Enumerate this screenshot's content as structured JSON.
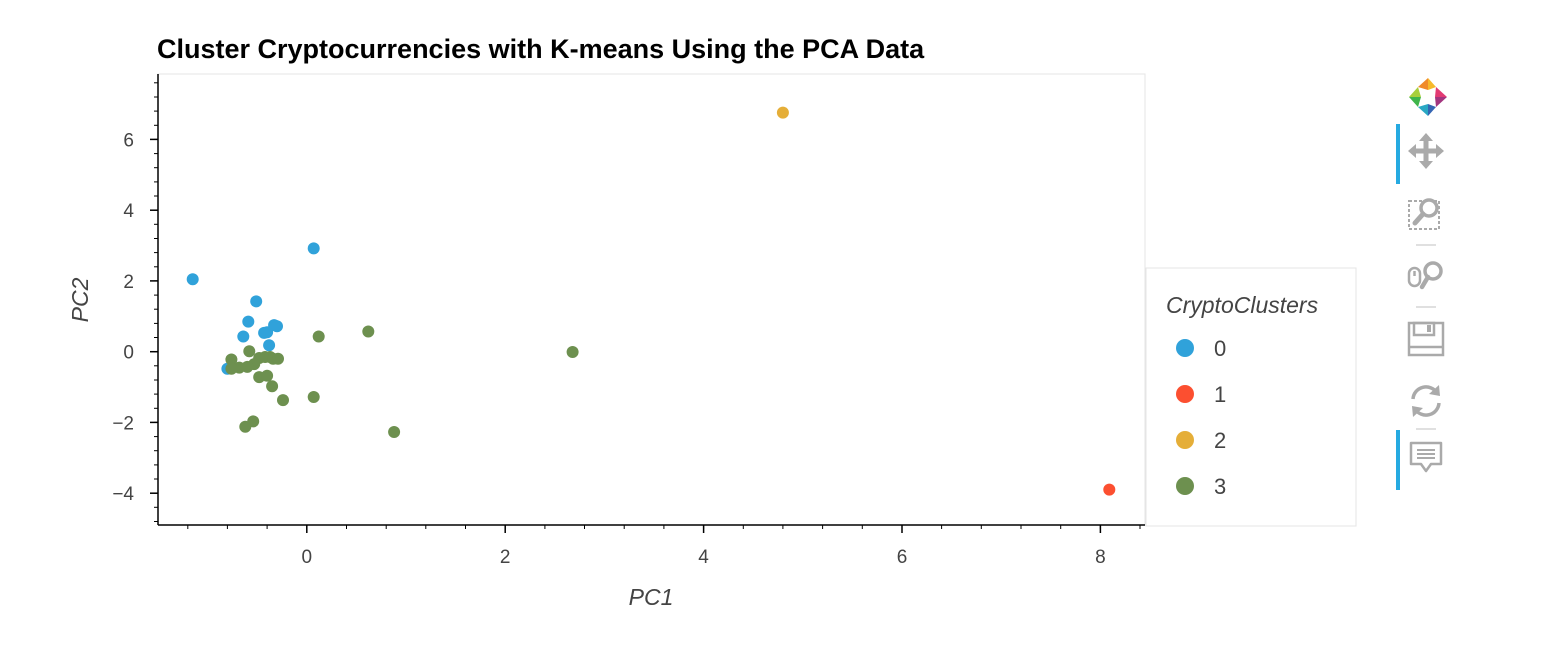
{
  "chart_data": {
    "type": "scatter",
    "title": "Cluster Cryptocurrencies with K-means Using the PCA Data",
    "xlabel": "PC1",
    "ylabel": "PC2",
    "xlim": [
      -1.5,
      8.45
    ],
    "ylim": [
      -4.9,
      7.85
    ],
    "x_ticks": [
      0,
      2,
      4,
      6,
      8
    ],
    "y_ticks": [
      -4,
      -2,
      0,
      2,
      4,
      6
    ],
    "x_tick_labels": [
      "0",
      "2",
      "4",
      "6",
      "8"
    ],
    "y_tick_labels": [
      "−4",
      "−2",
      "0",
      "2",
      "4",
      "6"
    ],
    "legend": {
      "title": "CryptoClusters",
      "placement": "right"
    },
    "series": [
      {
        "name": "0",
        "color": "#30a2da",
        "points": [
          [
            -1.15,
            2.05
          ],
          [
            0.07,
            2.92
          ],
          [
            -0.51,
            1.42
          ],
          [
            -0.59,
            0.85
          ],
          [
            -0.33,
            0.75
          ],
          [
            -0.3,
            0.72
          ],
          [
            -0.43,
            0.53
          ],
          [
            -0.4,
            0.55
          ],
          [
            -0.64,
            0.43
          ],
          [
            -0.38,
            0.18
          ],
          [
            -0.8,
            -0.48
          ]
        ]
      },
      {
        "name": "1",
        "color": "#fc4f30",
        "points": [
          [
            8.09,
            -3.9
          ]
        ]
      },
      {
        "name": "2",
        "color": "#e5ae38",
        "points": [
          [
            4.8,
            6.76
          ]
        ]
      },
      {
        "name": "3",
        "color": "#6d904f",
        "points": [
          [
            0.12,
            0.43
          ],
          [
            0.62,
            0.57
          ],
          [
            2.68,
            -0.01
          ],
          [
            -0.76,
            -0.22
          ],
          [
            -0.58,
            0.01
          ],
          [
            -0.48,
            -0.18
          ],
          [
            -0.42,
            -0.15
          ],
          [
            -0.37,
            -0.15
          ],
          [
            -0.34,
            -0.2
          ],
          [
            -0.29,
            -0.2
          ],
          [
            -0.53,
            -0.35
          ],
          [
            -0.6,
            -0.43
          ],
          [
            -0.68,
            -0.45
          ],
          [
            -0.76,
            -0.48
          ],
          [
            -0.48,
            -0.72
          ],
          [
            -0.4,
            -0.68
          ],
          [
            -0.35,
            -0.98
          ],
          [
            -0.24,
            -1.37
          ],
          [
            0.07,
            -1.28
          ],
          [
            0.88,
            -2.27
          ],
          [
            -0.54,
            -1.97
          ],
          [
            -0.62,
            -2.12
          ]
        ]
      }
    ]
  },
  "toolbar": {
    "logo": "bokeh-logo-icon",
    "tools": [
      {
        "name": "pan-icon",
        "active": true
      },
      {
        "name": "box-zoom-icon",
        "active": false
      },
      {
        "name": "wheel-zoom-icon",
        "active": false
      },
      {
        "name": "save-icon",
        "active": false
      },
      {
        "name": "reset-icon",
        "active": false
      },
      {
        "name": "hover-icon",
        "active": true
      }
    ]
  }
}
